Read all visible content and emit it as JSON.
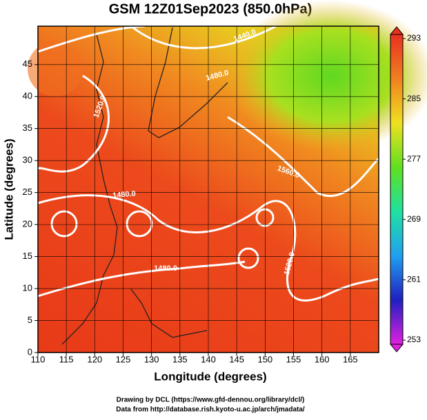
{
  "chart_data": {
    "type": "map",
    "title": "GSM 12Z01Sep2023 (850.0hPa)",
    "x_label": "Longitude (degrees)",
    "y_label": "Latitude  (degrees)",
    "xlim": [
      110,
      170
    ],
    "xticks": [
      110,
      115,
      120,
      125,
      130,
      135,
      140,
      145,
      150,
      155,
      160,
      165
    ],
    "ylim": [
      0,
      51
    ],
    "yticks": [
      0,
      5,
      10,
      15,
      20,
      25,
      30,
      35,
      40,
      45
    ],
    "grid": true,
    "contour_labels": [
      "1440.0",
      "1480.0",
      "1520.0",
      "1560.0",
      "1480.0",
      "1480.0",
      "1520.0"
    ],
    "colorbar": {
      "lim": [
        253,
        293
      ],
      "ticks": [
        253,
        261,
        269,
        277,
        285,
        293
      ],
      "colors": [
        "#e020e0",
        "#2020c0",
        "#20a0f0",
        "#20e0a0",
        "#60e020",
        "#f0e020",
        "#f08020",
        "#e83020"
      ]
    },
    "credits": [
      "Drawing by DCL (https://www.gfd-dennou.org/library/dcl/)",
      "Data from http://database.rish.kyoto-u.ac.jp/arch/jmadata/"
    ]
  }
}
